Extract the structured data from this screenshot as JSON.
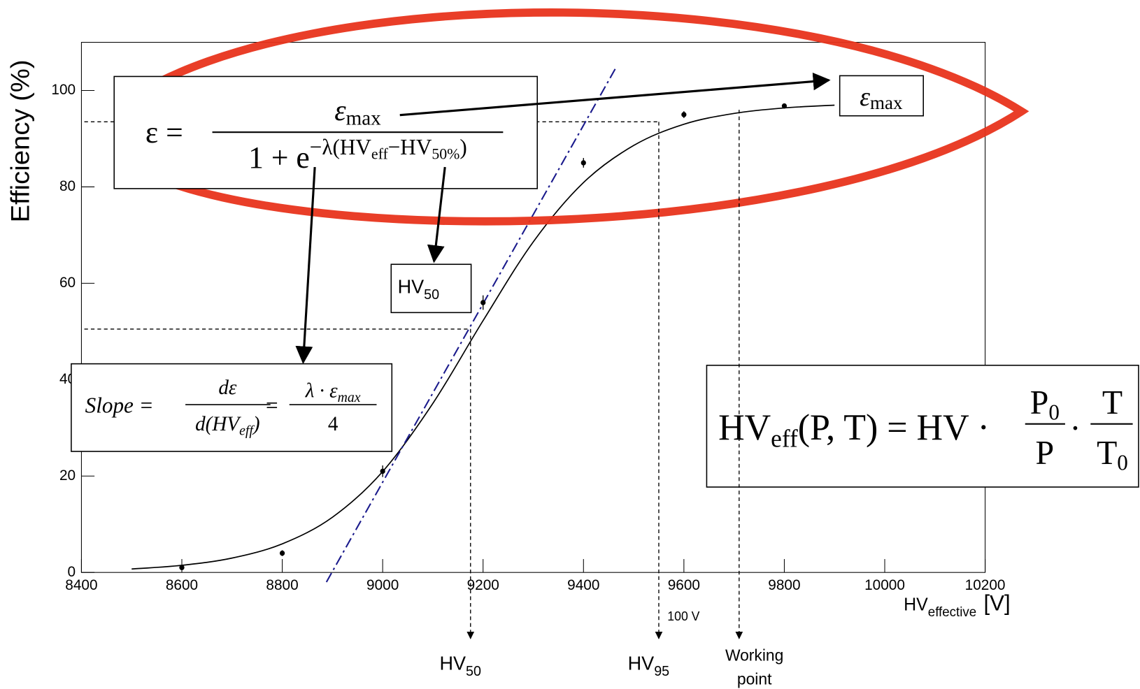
{
  "chart_data": {
    "type": "scatter",
    "y_label": "Efficiency (%)",
    "x_label": {
      "text": "HV",
      "sub": "effective",
      "unit": "[V]"
    },
    "xlim": [
      8400,
      10200
    ],
    "ylim": [
      0,
      110
    ],
    "xticks": [
      8400,
      8600,
      8800,
      9000,
      9200,
      9400,
      9600,
      9800,
      10000,
      10200
    ],
    "yticks": [
      0,
      20,
      40,
      60,
      80,
      100
    ],
    "series": [
      {
        "color": "#000000",
        "x": [
          8600,
          8800,
          9000,
          9200,
          9400,
          9600,
          9800
        ],
        "values": [
          1,
          4,
          21,
          56,
          85,
          95,
          96.8
        ],
        "errors": [
          0.4,
          0.6,
          1.2,
          1.5,
          1,
          0.7,
          0.5
        ]
      }
    ],
    "fit": {
      "color": "#000000",
      "x": [
        8500,
        8600,
        8700,
        8800,
        8900,
        9000,
        9100,
        9200,
        9300,
        9400,
        9500,
        9600,
        9700,
        9800,
        9900
      ],
      "values": [
        0.72,
        1.48,
        2.98,
        5.93,
        11.46,
        20.94,
        35.08,
        52.25,
        68.6,
        80.9,
        88.6,
        93.0,
        95.25,
        96.39,
        96.96
      ]
    },
    "tangent": {
      "color": "#1a1a8c",
      "x": [
        8888,
        9466
      ],
      "values": [
        -2,
        105
      ]
    },
    "reference_lines": [
      {
        "x": 9175,
        "y": 50.5,
        "label": {
          "text": "HV",
          "sub": "50"
        }
      },
      {
        "x": 9550,
        "y": 93.5,
        "label": {
          "text": "HV",
          "sub": "95"
        }
      },
      {
        "x": 9710,
        "y": 96,
        "label_lines": [
          "Working",
          "point"
        ]
      }
    ],
    "delta_label": "100 V",
    "annotations": {
      "efficiency_formula": {
        "lhs": "ε =",
        "num": "ε",
        "num_sub": "max",
        "den": "1 + e",
        "den_sup": "−λ(HV",
        "den_sup_sub1": "eff",
        "den_sup_mid": "−HV",
        "den_sup_sub2": "50%",
        "den_sup_end": ")"
      },
      "emax_label": {
        "text": "ε",
        "sub": "max"
      },
      "hv50_box": {
        "text": "HV",
        "sub": "50"
      },
      "slope_formula": {
        "lhs": "Slope =",
        "num1": "dε",
        "den1": "d(HV",
        "den1_sub": "eff",
        "den1_end": ")",
        "eq": "=",
        "num2": "λ · ε",
        "num2_sub": "max",
        "den2": "4"
      },
      "hveff_formula": {
        "lhs": "HV",
        "lhs_sub": "eff",
        "lhs_end": "(P, T) = HV ·",
        "f1_num": "P",
        "f1_num_sub": "0",
        "f1_den": "P",
        "dot": "·",
        "f2_num": "T",
        "f2_den": "T",
        "f2_den_sub": "0"
      }
    }
  }
}
